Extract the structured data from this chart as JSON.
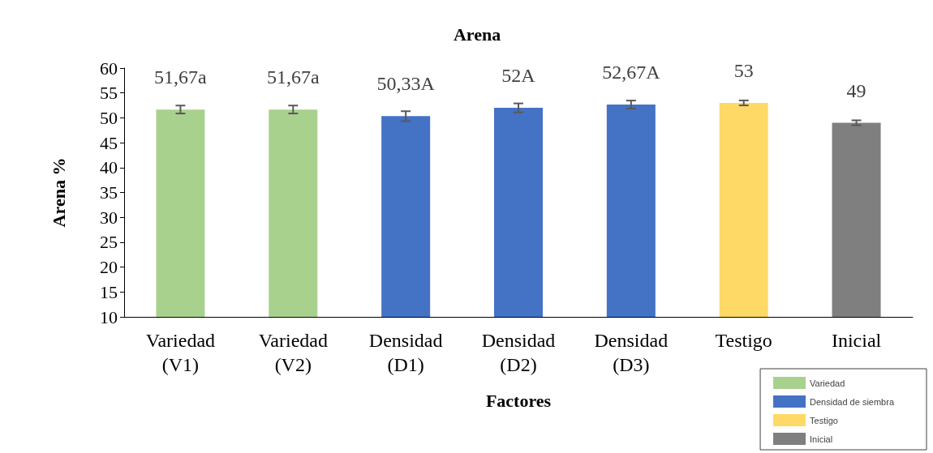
{
  "chart_data": {
    "type": "bar",
    "title": "Arena",
    "xlabel": "Factores",
    "ylabel": "Arena %",
    "categories": [
      "Variedad (V1)",
      "Variedad (V2)",
      "Densidad (D1)",
      "Densidad (D2)",
      "Densidad (D3)",
      "Testigo",
      "Inicial"
    ],
    "series": [
      {
        "name": "Variedad",
        "color": "#a9d18e",
        "values": [
          51.67,
          51.67,
          null,
          null,
          null,
          null,
          null
        ],
        "errors": [
          0.8,
          0.8,
          null,
          null,
          null,
          null,
          null
        ],
        "value_labels": [
          "51,67a",
          "51,67a",
          null,
          null,
          null,
          null,
          null
        ]
      },
      {
        "name": "Densidad de siembra",
        "color": "#4472c4",
        "values": [
          null,
          null,
          50.33,
          52,
          52.67,
          null,
          null
        ],
        "errors": [
          null,
          null,
          1,
          0.9,
          0.8,
          null,
          null
        ],
        "value_labels": [
          null,
          null,
          "50,33A",
          "52A",
          "52,67A",
          null,
          null
        ]
      },
      {
        "name": "Testigo",
        "color": "#ffd966",
        "values": [
          null,
          null,
          null,
          null,
          null,
          53,
          null
        ],
        "errors": [
          null,
          null,
          null,
          null,
          null,
          0.5,
          null
        ],
        "value_labels": [
          null,
          null,
          null,
          null,
          null,
          "53",
          null
        ]
      },
      {
        "name": "Inicial",
        "color": "#7f7f7f",
        "values": [
          null,
          null,
          null,
          null,
          null,
          null,
          49
        ],
        "errors": [
          null,
          null,
          null,
          null,
          null,
          null,
          0.5
        ],
        "value_labels": [
          null,
          null,
          null,
          null,
          null,
          null,
          "49"
        ]
      }
    ],
    "ylim": [
      10,
      60
    ],
    "yticks": [
      10,
      15,
      20,
      25,
      30,
      35,
      40,
      45,
      50,
      55,
      60
    ],
    "grid": false,
    "legend": "bottom right"
  }
}
